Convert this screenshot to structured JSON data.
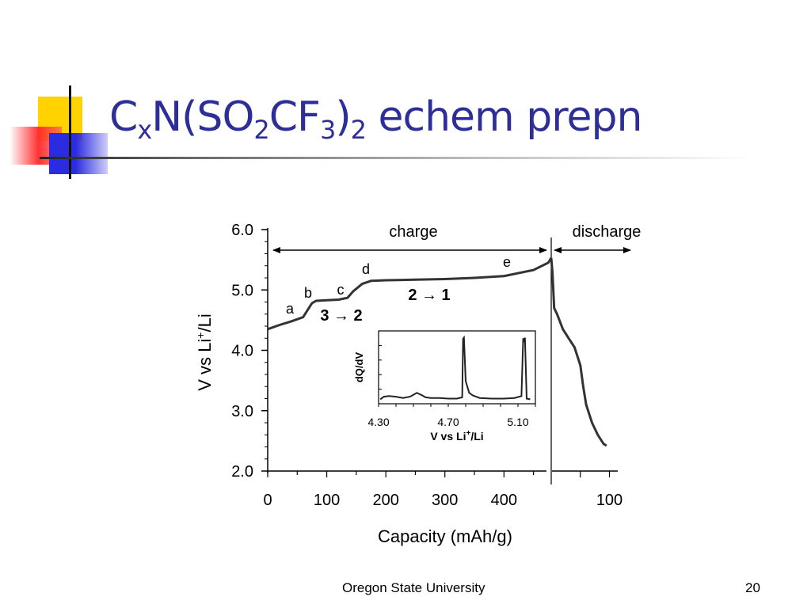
{
  "slide": {
    "title": {
      "base": "C",
      "sub1": "x",
      "mid1": "N(SO",
      "sub2": "2",
      "mid2": "CF",
      "sub3": "3",
      "mid3": ")",
      "sub4": "2",
      "tail": " echem prepn"
    },
    "footer": "Oregon State University",
    "page_number": "20",
    "colors": {
      "title": "#2e2e99",
      "deco_yellow": "#ffd200",
      "deco_red": "#ff2828",
      "deco_blue": "#2b2bdf"
    }
  },
  "chart_data": [
    {
      "type": "line",
      "name": "main",
      "ylabel_parts": [
        "V vs Li",
        "+",
        "/Li"
      ],
      "xlabel": "Capacity (mAh/g)",
      "ylim": [
        2.0,
        6.0
      ],
      "yticks": [
        "6.0",
        "5.0",
        "4.0",
        "3.0",
        "2.0"
      ],
      "xticks_charge": [
        "0",
        "100",
        "200",
        "300",
        "400"
      ],
      "xticks_discharge": [
        "100"
      ],
      "charge_label": "charge",
      "discharge_label": "discharge",
      "point_labels": [
        "a",
        "b",
        "c",
        "d",
        "e"
      ],
      "transitions": [
        "3 → 2",
        "2 → 1"
      ],
      "charge_series": {
        "x": [
          0,
          20,
          40,
          60,
          75,
          82,
          100,
          120,
          135,
          145,
          160,
          175,
          200,
          250,
          300,
          350,
          400,
          450,
          475,
          480
        ],
        "y": [
          4.35,
          4.42,
          4.48,
          4.55,
          4.78,
          4.82,
          4.83,
          4.84,
          4.87,
          4.98,
          5.1,
          5.15,
          5.16,
          5.17,
          5.18,
          5.2,
          5.23,
          5.33,
          5.45,
          5.53
        ]
      },
      "discharge_series": {
        "x": [
          0,
          2,
          5,
          10,
          20,
          30,
          40,
          50,
          55,
          60,
          70,
          80,
          90,
          95
        ],
        "y": [
          5.53,
          5.3,
          4.7,
          4.6,
          4.35,
          4.2,
          4.05,
          3.75,
          3.4,
          3.1,
          2.8,
          2.6,
          2.45,
          2.42
        ]
      }
    },
    {
      "type": "line",
      "name": "inset",
      "ylabel": "dQ/dV",
      "xlabel_parts": [
        "V vs Li",
        "+",
        "/Li"
      ],
      "xlim": [
        4.3,
        5.2
      ],
      "xticks": [
        "4.30",
        "4.70",
        "5.10"
      ],
      "series": {
        "x": [
          4.31,
          4.33,
          4.36,
          4.4,
          4.44,
          4.48,
          4.52,
          4.55,
          4.57,
          4.6,
          4.65,
          4.7,
          4.75,
          4.78,
          4.785,
          4.79,
          4.8,
          4.82,
          4.84,
          4.88,
          4.95,
          5.02,
          5.08,
          5.12,
          5.13,
          5.135,
          5.14,
          5.15,
          5.17
        ],
        "y": [
          0.02,
          0.06,
          0.07,
          0.06,
          0.04,
          0.06,
          0.12,
          0.08,
          0.05,
          0.04,
          0.04,
          0.03,
          0.03,
          0.05,
          0.95,
          0.97,
          0.3,
          0.12,
          0.08,
          0.04,
          0.03,
          0.03,
          0.04,
          0.07,
          0.96,
          0.9,
          0.97,
          0.03,
          0.02
        ]
      }
    }
  ]
}
